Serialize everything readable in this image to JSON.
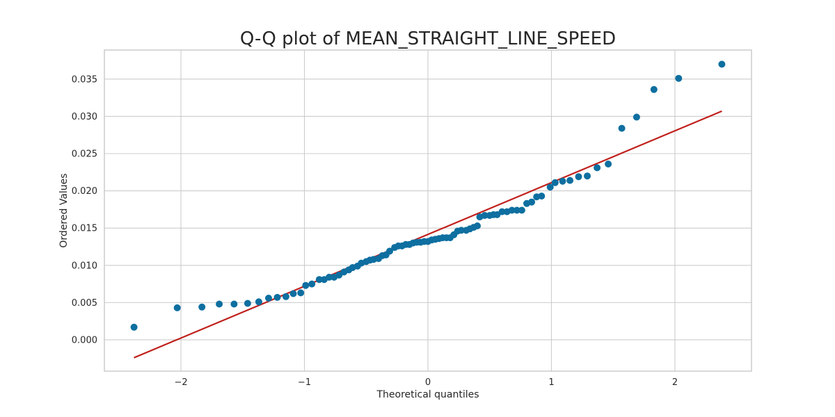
{
  "chart_data": {
    "type": "scatter",
    "title": "Q-Q plot of MEAN_STRAIGHT_LINE_SPEED",
    "xlabel": "Theoretical quantiles",
    "ylabel": "Ordered Values",
    "xlim": [
      -2.62,
      2.62
    ],
    "ylim": [
      -0.0042,
      0.0389
    ],
    "xticks": [
      -2,
      -1,
      0,
      1,
      2
    ],
    "xtick_labels": [
      "−2",
      "−1",
      "0",
      "1",
      "2"
    ],
    "yticks": [
      0.0,
      0.005,
      0.01,
      0.015,
      0.02,
      0.025,
      0.03,
      0.035
    ],
    "ytick_labels": [
      "0.000",
      "0.005",
      "0.010",
      "0.015",
      "0.020",
      "0.025",
      "0.030",
      "0.035"
    ],
    "grid": true,
    "series": [
      {
        "kind": "points",
        "color": "#0e6fa0",
        "points": [
          [
            -2.38,
            0.0017
          ],
          [
            -2.03,
            0.0043
          ],
          [
            -1.83,
            0.0044
          ],
          [
            -1.69,
            0.0048
          ],
          [
            -1.57,
            0.0048
          ],
          [
            -1.46,
            0.0049
          ],
          [
            -1.37,
            0.0051
          ],
          [
            -1.29,
            0.0056
          ],
          [
            -1.22,
            0.0057
          ],
          [
            -1.15,
            0.0058
          ],
          [
            -1.09,
            0.0062
          ],
          [
            -1.03,
            0.0063
          ],
          [
            -0.99,
            0.0073
          ],
          [
            -0.94,
            0.0075
          ],
          [
            -0.88,
            0.0081
          ],
          [
            -0.84,
            0.0081
          ],
          [
            -0.8,
            0.0084
          ],
          [
            -0.76,
            0.0084
          ],
          [
            -0.72,
            0.0087
          ],
          [
            -0.68,
            0.0091
          ],
          [
            -0.64,
            0.0094
          ],
          [
            -0.61,
            0.0097
          ],
          [
            -0.57,
            0.0099
          ],
          [
            -0.54,
            0.0103
          ],
          [
            -0.5,
            0.0105
          ],
          [
            -0.47,
            0.0107
          ],
          [
            -0.44,
            0.0108
          ],
          [
            -0.4,
            0.0109
          ],
          [
            -0.37,
            0.0113
          ],
          [
            -0.34,
            0.0114
          ],
          [
            -0.31,
            0.0119
          ],
          [
            -0.27,
            0.0124
          ],
          [
            -0.24,
            0.0126
          ],
          [
            -0.21,
            0.0126
          ],
          [
            -0.18,
            0.0128
          ],
          [
            -0.15,
            0.0128
          ],
          [
            -0.12,
            0.013
          ],
          [
            -0.09,
            0.0131
          ],
          [
            -0.06,
            0.0131
          ],
          [
            -0.03,
            0.0132
          ],
          [
            0.0,
            0.0132
          ],
          [
            0.03,
            0.0134
          ],
          [
            0.06,
            0.0135
          ],
          [
            0.09,
            0.0136
          ],
          [
            0.12,
            0.0137
          ],
          [
            0.15,
            0.0137
          ],
          [
            0.18,
            0.0137
          ],
          [
            0.21,
            0.0141
          ],
          [
            0.24,
            0.0146
          ],
          [
            0.27,
            0.0147
          ],
          [
            0.31,
            0.0147
          ],
          [
            0.34,
            0.0149
          ],
          [
            0.37,
            0.0151
          ],
          [
            0.4,
            0.0153
          ],
          [
            0.42,
            0.0165
          ],
          [
            0.46,
            0.0167
          ],
          [
            0.5,
            0.0167
          ],
          [
            0.53,
            0.0168
          ],
          [
            0.56,
            0.0168
          ],
          [
            0.6,
            0.0172
          ],
          [
            0.64,
            0.0172
          ],
          [
            0.68,
            0.0174
          ],
          [
            0.72,
            0.0174
          ],
          [
            0.76,
            0.0174
          ],
          [
            0.8,
            0.0183
          ],
          [
            0.84,
            0.0185
          ],
          [
            0.88,
            0.0192
          ],
          [
            0.92,
            0.0193
          ],
          [
            0.99,
            0.0205
          ],
          [
            1.03,
            0.0211
          ],
          [
            1.09,
            0.0213
          ],
          [
            1.15,
            0.0214
          ],
          [
            1.22,
            0.0219
          ],
          [
            1.29,
            0.022
          ],
          [
            1.37,
            0.0231
          ],
          [
            1.46,
            0.0236
          ],
          [
            1.57,
            0.0284
          ],
          [
            1.69,
            0.0299
          ],
          [
            1.83,
            0.0336
          ],
          [
            2.03,
            0.0351
          ],
          [
            2.38,
            0.037
          ]
        ]
      },
      {
        "kind": "line",
        "color": "#c0201c",
        "points": [
          [
            -2.38,
            -0.0024
          ],
          [
            2.38,
            0.0307
          ]
        ]
      }
    ]
  }
}
